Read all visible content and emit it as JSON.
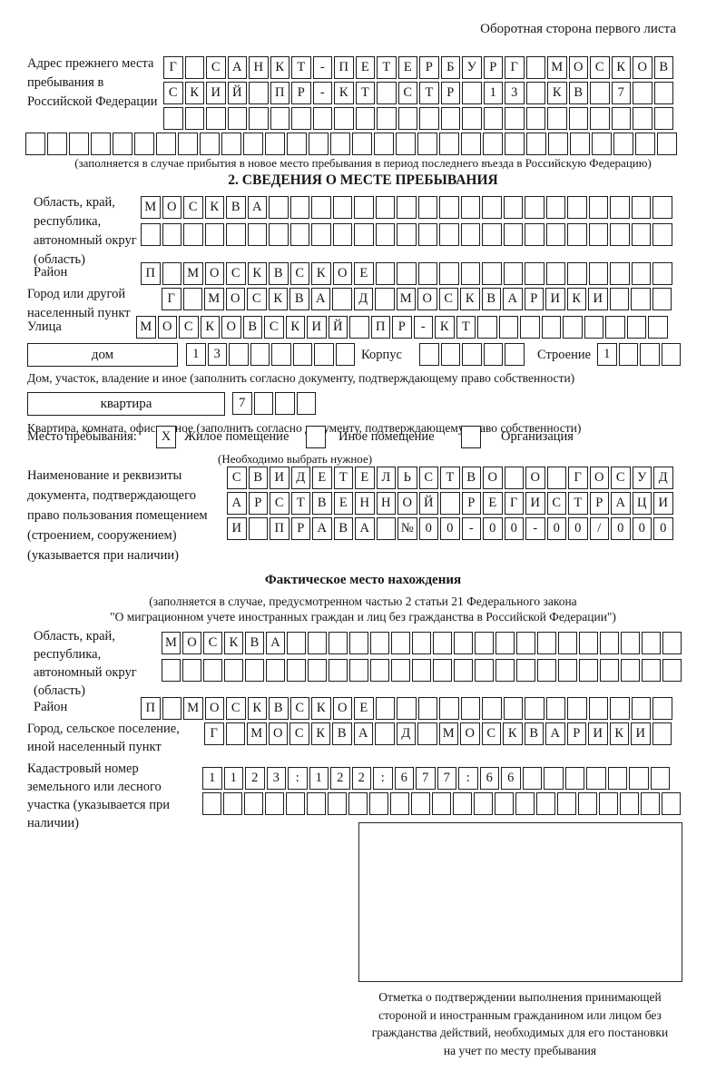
{
  "page": {
    "header_note": "Оборотная сторона первого листа"
  },
  "prev_address": {
    "label": "Адрес прежнего места пребывания в Российской Федерации",
    "row1": {
      "text": "Г САНКТ-ПЕТЕРБУРГ МОСКОВ",
      "len": 24
    },
    "row2": {
      "text": "СКИЙ ПР-КТ СТР 13 КВ 7",
      "len": 24
    },
    "row3": {
      "text": "",
      "len": 24
    },
    "row4": {
      "text": "",
      "len": 30
    },
    "note": "(заполняется в случае прибытия в новое место пребывания в период последнего въезда в Российскую Федерацию)"
  },
  "section2": {
    "title": "2. СВЕДЕНИЯ О МЕСТЕ ПРЕБЫВАНИЯ",
    "region": {
      "label": "Область, край, республика, автономный округ (область)",
      "row1": {
        "text": "МОСКВА",
        "len": 25
      },
      "row2": {
        "text": "",
        "len": 25
      }
    },
    "district": {
      "label": "Район",
      "row": {
        "text": "П МОСКВСКОЕ",
        "len": 25
      }
    },
    "city": {
      "label": "Город или другой населенный пункт",
      "row": {
        "text": "Г МОСКВА Д МОСКВАРИКИ",
        "len": 24
      }
    },
    "street": {
      "label": "Улица",
      "row": {
        "text": "МОСКОВСКИЙ ПР-КТ",
        "len": 25
      }
    },
    "house": {
      "box_label": "дом",
      "row": {
        "text": "13",
        "len": 8
      },
      "korpus_label": "Корпус",
      "korpus_row": {
        "text": "",
        "len": 5
      },
      "stroenie_label": "Строение",
      "stroenie_row": {
        "text": "1",
        "len": 4
      }
    },
    "house_note": "Дом, участок, владение и иное (заполнить согласно документу, подтверждающему право собственности)",
    "apartment": {
      "box_label": "квартира",
      "row": {
        "text": "7",
        "len": 4
      }
    },
    "apartment_note": "Квартира, комната, офис и иное (заполнить согласно документу, подтверждающему право собственности)",
    "stay_type": {
      "label": "Место пребывания:",
      "options": [
        {
          "label": "Жилое помещение",
          "checked": "X"
        },
        {
          "label": "Иное помещение",
          "checked": ""
        },
        {
          "label": "Организация",
          "checked": ""
        }
      ],
      "note": "(Необходимо выбрать нужное)"
    },
    "document": {
      "label": "Наименование и реквизиты документа, подтверждающего право пользования помещением (строением, сооружением) (указывается при наличии)",
      "row1": {
        "text": "СВИДЕТЕЛЬСТВО О ГОСУД",
        "len": 21
      },
      "row2": {
        "text": "АРСТВЕННОЙ РЕГИСТРАЦИ",
        "len": 21
      },
      "row3": {
        "text": "И ПРАВА №00-00-00/000",
        "len": 21
      }
    }
  },
  "actual_location": {
    "title": "Фактическое место нахождения",
    "note_line1": "(заполняется в случае, предусмотренном частью 2 статьи 21 Федерального закона",
    "note_line2": "\"О миграционном учете иностранных граждан и лиц без гражданства в Российской Федерации\")",
    "region": {
      "label": "Область, край, республика, автономный округ (область)",
      "row1": {
        "text": "МОСКВА",
        "len": 25
      },
      "row2": {
        "text": "",
        "len": 25
      }
    },
    "district": {
      "label": "Район",
      "row": {
        "text": "П МОСКВСКОЕ",
        "len": 25
      }
    },
    "city": {
      "label": "Город, сельское поселение, иной населенный пункт",
      "row": {
        "text": "Г МОСКВА Д МОСКВАРИКИ",
        "len": 22
      }
    },
    "cadastral": {
      "label": "Кадастровый номер земельного или лесного участка (указывается при наличии)",
      "row1": {
        "text": "1123:122:677:66",
        "len": 22
      },
      "row2": {
        "text": "",
        "len": 23
      }
    },
    "stamp_caption_lines": [
      "Отметка о подтверждении выполнения принимающей",
      "стороной и иностранным гражданином или лицом без",
      "гражданства действий, необходимых для его постановки",
      "на учет по месту пребывания"
    ]
  }
}
